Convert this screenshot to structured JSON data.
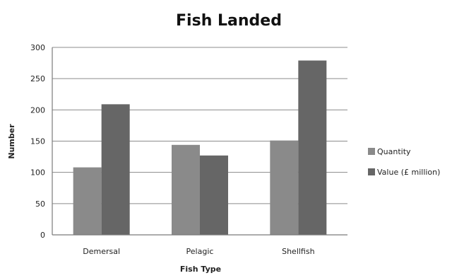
{
  "chart_data": {
    "type": "bar",
    "title": "Fish Landed",
    "xlabel": "Fish Type",
    "ylabel": "Number",
    "categories": [
      "Demersal",
      "Pelagic",
      "Shellfish"
    ],
    "series": [
      {
        "name": "Quantity",
        "values": [
          108,
          144,
          151
        ],
        "color": "#8a8a8a"
      },
      {
        "name": "Value (£ million)",
        "values": [
          209,
          127,
          279
        ],
        "color": "#666666"
      }
    ],
    "ylim": [
      0,
      300
    ],
    "yticks": [
      0,
      50,
      100,
      150,
      200,
      250,
      300
    ],
    "grid": true,
    "legend": "right"
  }
}
